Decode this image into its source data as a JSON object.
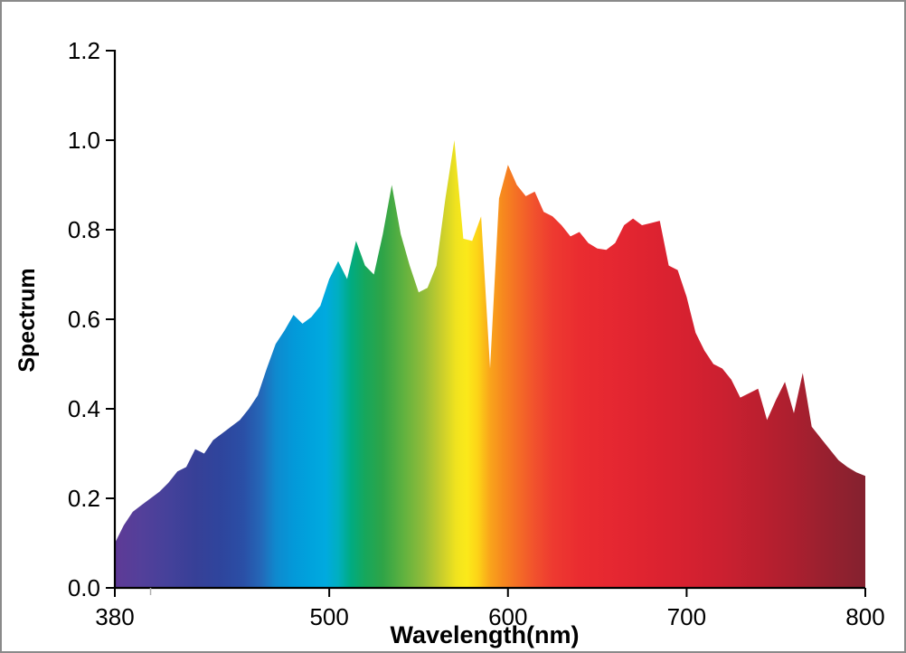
{
  "frame": {
    "background_color": "#FFFFFF",
    "border_color": "#8A8A8A",
    "axis_color": "#000000",
    "text_color": "#000000",
    "minor_tick_color": "#AFAFAF"
  },
  "chart_data": {
    "type": "area",
    "title": "",
    "xlabel": "Wavelength(nm)",
    "ylabel": "Spectrum",
    "xlim": [
      380,
      800
    ],
    "ylim": [
      0,
      1.2
    ],
    "x_tick_labels": [
      "380",
      "500",
      "600",
      "700",
      "800"
    ],
    "x_ticks": [
      380,
      500,
      600,
      700,
      800
    ],
    "x_minor_ticks": [
      400
    ],
    "y_tick_labels": [
      "0.0",
      "0.2",
      "0.4",
      "0.6",
      "0.8",
      "1.0",
      "1.2"
    ],
    "y_ticks": [
      0,
      0.2,
      0.4,
      0.6,
      0.8,
      1.0,
      1.2
    ],
    "grid": false,
    "legend": false,
    "fill_style": "visible-spectrum-gradient",
    "gradient_stops": [
      {
        "nm": 380,
        "color": "#5E3A96"
      },
      {
        "nm": 395,
        "color": "#53409A"
      },
      {
        "nm": 410,
        "color": "#45419A"
      },
      {
        "nm": 425,
        "color": "#374097"
      },
      {
        "nm": 440,
        "color": "#2E459D"
      },
      {
        "nm": 452,
        "color": "#2A4FA6"
      },
      {
        "nm": 462,
        "color": "#2468B8"
      },
      {
        "nm": 470,
        "color": "#0F89CE"
      },
      {
        "nm": 480,
        "color": "#0399D9"
      },
      {
        "nm": 490,
        "color": "#00A3DD"
      },
      {
        "nm": 498,
        "color": "#00AADF"
      },
      {
        "nm": 505,
        "color": "#00AFC0"
      },
      {
        "nm": 512,
        "color": "#00AB82"
      },
      {
        "nm": 520,
        "color": "#16A75C"
      },
      {
        "nm": 530,
        "color": "#2FA447"
      },
      {
        "nm": 542,
        "color": "#62B23F"
      },
      {
        "nm": 553,
        "color": "#93BC39"
      },
      {
        "nm": 563,
        "color": "#C9CE2C"
      },
      {
        "nm": 571,
        "color": "#F0E31E"
      },
      {
        "nm": 577,
        "color": "#FBE91A"
      },
      {
        "nm": 583,
        "color": "#FCD417"
      },
      {
        "nm": 590,
        "color": "#F9A41B"
      },
      {
        "nm": 598,
        "color": "#F6861F"
      },
      {
        "nm": 606,
        "color": "#F46C26"
      },
      {
        "nm": 615,
        "color": "#F1512D"
      },
      {
        "nm": 625,
        "color": "#EE3A30"
      },
      {
        "nm": 640,
        "color": "#EA2C30"
      },
      {
        "nm": 660,
        "color": "#E52731"
      },
      {
        "nm": 680,
        "color": "#DE2330"
      },
      {
        "nm": 700,
        "color": "#D62130"
      },
      {
        "nm": 720,
        "color": "#CB2030"
      },
      {
        "nm": 740,
        "color": "#BC1F2F"
      },
      {
        "nm": 760,
        "color": "#AB1F2F"
      },
      {
        "nm": 775,
        "color": "#9B202F"
      },
      {
        "nm": 790,
        "color": "#8D212F"
      },
      {
        "nm": 800,
        "color": "#84212F"
      }
    ],
    "x": [
      380,
      385,
      390,
      395,
      400,
      405,
      410,
      415,
      420,
      425,
      430,
      435,
      440,
      445,
      450,
      455,
      460,
      465,
      470,
      475,
      480,
      485,
      490,
      495,
      500,
      505,
      510,
      515,
      520,
      525,
      530,
      535,
      540,
      545,
      550,
      555,
      560,
      565,
      570,
      575,
      580,
      585,
      590,
      595,
      600,
      605,
      610,
      615,
      620,
      625,
      630,
      635,
      640,
      645,
      650,
      655,
      660,
      665,
      670,
      675,
      680,
      685,
      690,
      695,
      700,
      705,
      710,
      715,
      720,
      725,
      730,
      735,
      740,
      745,
      750,
      755,
      760,
      765,
      770,
      775,
      780,
      785,
      790,
      795,
      800
    ],
    "values": [
      0.1,
      0.14,
      0.17,
      0.185,
      0.2,
      0.215,
      0.235,
      0.26,
      0.27,
      0.31,
      0.3,
      0.33,
      0.345,
      0.36,
      0.375,
      0.4,
      0.43,
      0.49,
      0.545,
      0.575,
      0.61,
      0.59,
      0.605,
      0.63,
      0.69,
      0.73,
      0.69,
      0.775,
      0.72,
      0.7,
      0.79,
      0.9,
      0.79,
      0.72,
      0.66,
      0.67,
      0.72,
      0.87,
      1.0,
      0.78,
      0.775,
      0.83,
      0.49,
      0.87,
      0.945,
      0.9,
      0.875,
      0.885,
      0.84,
      0.83,
      0.81,
      0.785,
      0.795,
      0.77,
      0.758,
      0.755,
      0.77,
      0.81,
      0.825,
      0.81,
      0.815,
      0.82,
      0.72,
      0.71,
      0.65,
      0.57,
      0.53,
      0.5,
      0.49,
      0.465,
      0.425,
      0.435,
      0.445,
      0.375,
      0.42,
      0.46,
      0.39,
      0.48,
      0.36,
      0.335,
      0.31,
      0.285,
      0.27,
      0.258,
      0.25
    ]
  }
}
